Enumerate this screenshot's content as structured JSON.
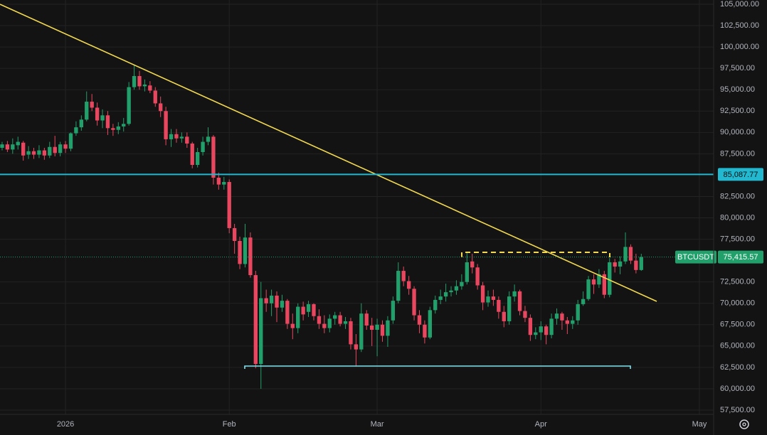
{
  "chart_data": {
    "type": "candlestick",
    "symbol": "BTCUSDT",
    "up_color": "#22a06b",
    "down_color": "#e9475f",
    "grid": true,
    "xlim": [
      -12.4,
      122.7
    ],
    "xticks": [
      {
        "value": 0,
        "label": "2026"
      },
      {
        "value": 31,
        "label": "Feb"
      },
      {
        "value": 59,
        "label": "Mar"
      },
      {
        "value": 90,
        "label": "Apr"
      },
      {
        "value": 120,
        "label": "May"
      }
    ],
    "ylim": [
      57000,
      105500
    ],
    "yticks": [
      {
        "value": 57500,
        "label": "57,500.00"
      },
      {
        "value": 60000,
        "label": "60,000.00"
      },
      {
        "value": 62500,
        "label": "62,500.00"
      },
      {
        "value": 65000,
        "label": "65,000.00"
      },
      {
        "value": 67500,
        "label": "67,500.00"
      },
      {
        "value": 70000,
        "label": "70,000.00"
      },
      {
        "value": 72500,
        "label": "72,500.00"
      },
      {
        "value": 77500,
        "label": "77,500.00"
      },
      {
        "value": 80000,
        "label": "80,000.00"
      },
      {
        "value": 82500,
        "label": "82,500.00"
      },
      {
        "value": 87500,
        "label": "87,500.00"
      },
      {
        "value": 90000,
        "label": "90,000.00"
      },
      {
        "value": 92500,
        "label": "92,500.00"
      },
      {
        "value": 95000,
        "label": "95,000.00"
      },
      {
        "value": 97500,
        "label": "97,500.00"
      },
      {
        "value": 100000,
        "label": "100,000.00"
      },
      {
        "value": 102500,
        "label": "102,500.00"
      },
      {
        "value": 105000,
        "label": "105,000.00"
      }
    ],
    "price_line": {
      "value": 85087.77,
      "label": "85,087.77",
      "color": "#22b8cf"
    },
    "last_price": {
      "value": 75415.57,
      "label": "75,415.57"
    },
    "x": [
      -12,
      -11,
      -10,
      -9,
      -8,
      -7,
      -6,
      -5,
      -4,
      -3,
      -2,
      -1,
      0,
      1,
      2,
      3,
      4,
      5,
      6,
      7,
      8,
      9,
      10,
      11,
      12,
      13,
      14,
      15,
      16,
      17,
      18,
      19,
      20,
      21,
      22,
      23,
      24,
      25,
      26,
      27,
      28,
      29,
      30,
      31,
      32,
      33,
      34,
      35,
      36,
      37,
      38,
      39,
      40,
      41,
      42,
      43,
      44,
      45,
      46,
      47,
      48,
      49,
      50,
      51,
      52,
      53,
      54,
      55,
      56,
      57,
      58,
      59,
      60,
      61,
      62,
      63,
      64,
      65,
      66,
      67,
      68,
      69,
      70,
      71,
      72,
      73,
      74,
      75,
      76,
      77,
      78,
      79,
      80,
      81,
      82,
      83,
      84,
      85,
      86,
      87,
      88,
      89,
      90,
      91,
      92,
      93,
      94,
      95,
      96,
      97,
      98,
      99,
      100,
      101,
      102,
      103,
      104,
      105,
      106,
      107,
      108,
      109
    ],
    "open": [
      88200,
      88600,
      88000,
      88500,
      88800,
      87400,
      87800,
      87400,
      87900,
      87300,
      88300,
      87600,
      88600,
      88100,
      89900,
      90600,
      91500,
      93600,
      92900,
      91400,
      92000,
      90500,
      90300,
      90700,
      91000,
      95300,
      96600,
      95400,
      95500,
      94900,
      93400,
      92500,
      89200,
      89800,
      89300,
      89500,
      88700,
      86200,
      87700,
      88900,
      89500,
      84700,
      83900,
      84200,
      78800,
      77300,
      74600,
      77700,
      73300,
      62900,
      70600,
      70000,
      70900,
      69500,
      70300,
      67600,
      67100,
      69600,
      69000,
      69900,
      68500,
      67600,
      67100,
      68200,
      68600,
      67600,
      67900,
      65200,
      64600,
      68800,
      67400,
      66900,
      67500,
      66200,
      68000,
      70300,
      73800,
      72600,
      71700,
      68600,
      67500,
      66000,
      69200,
      70400,
      70800,
      71300,
      71500,
      72000,
      72500,
      74900,
      74200,
      72100,
      70100,
      70800,
      70400,
      69000,
      67900,
      70800,
      71400,
      69100,
      68300,
      66300,
      66600,
      67300,
      66300,
      68200,
      68800,
      68000,
      67600,
      68000,
      69900,
      70500,
      72800,
      72200,
      73400,
      71000,
      74800,
      74300,
      74900,
      76600,
      75000,
      73900
    ],
    "high": [
      88900,
      89000,
      89300,
      89500,
      89000,
      88400,
      88200,
      88500,
      88200,
      88900,
      89600,
      88900,
      89000,
      90000,
      91300,
      92000,
      94800,
      94500,
      93500,
      92700,
      92500,
      91000,
      91200,
      91700,
      95900,
      97900,
      97200,
      96200,
      96000,
      95300,
      94200,
      93000,
      90400,
      90400,
      90000,
      90000,
      88900,
      88200,
      89500,
      90600,
      89700,
      85300,
      84800,
      84500,
      79300,
      77800,
      79300,
      78300,
      73800,
      72500,
      71600,
      71600,
      71400,
      71000,
      70500,
      68800,
      70000,
      70200,
      70300,
      70000,
      69300,
      68600,
      68700,
      69000,
      69000,
      68400,
      68300,
      66400,
      70000,
      69200,
      68300,
      68200,
      68000,
      68500,
      70800,
      74800,
      74300,
      73200,
      72000,
      69200,
      68000,
      69600,
      70900,
      71600,
      72300,
      72000,
      72700,
      73400,
      76000,
      75800,
      74600,
      72500,
      71500,
      71600,
      70800,
      69700,
      71400,
      72200,
      71600,
      69700,
      68700,
      67200,
      67900,
      67500,
      68800,
      69400,
      69000,
      68400,
      68500,
      70400,
      71400,
      73200,
      73400,
      74000,
      73800,
      75300,
      75200,
      75500,
      78300,
      76900,
      75800,
      75800
    ],
    "low": [
      87900,
      87700,
      87500,
      88000,
      86700,
      86900,
      86900,
      87000,
      86800,
      87000,
      87200,
      87200,
      87600,
      87800,
      89600,
      90200,
      91300,
      92500,
      90800,
      90500,
      89700,
      89600,
      89800,
      90100,
      90800,
      95000,
      95000,
      94800,
      94600,
      93000,
      91800,
      88500,
      88300,
      88800,
      88800,
      88200,
      85800,
      85900,
      87300,
      88500,
      83900,
      83300,
      83300,
      78200,
      75800,
      74000,
      74200,
      73000,
      62400,
      60000,
      69000,
      68500,
      67800,
      69000,
      67000,
      65800,
      66500,
      68000,
      68400,
      68000,
      67000,
      66500,
      66600,
      67500,
      67300,
      67000,
      64600,
      62600,
      64300,
      66900,
      65000,
      63800,
      65500,
      64900,
      67600,
      70000,
      72000,
      71000,
      68000,
      66500,
      65300,
      65800,
      68800,
      69900,
      70200,
      70800,
      71000,
      71600,
      72200,
      73500,
      71600,
      69200,
      69600,
      69700,
      68200,
      67200,
      67500,
      70200,
      68600,
      67800,
      65600,
      65800,
      65700,
      65200,
      65900,
      67500,
      66900,
      66400,
      67000,
      67500,
      69700,
      70300,
      71100,
      71800,
      70600,
      70700,
      73600,
      73400,
      74600,
      74600,
      73500,
      73800
    ],
    "close": [
      88600,
      88000,
      88600,
      88900,
      87300,
      87800,
      87400,
      87900,
      87300,
      88300,
      87600,
      88600,
      88100,
      89900,
      90600,
      91500,
      93600,
      92900,
      91400,
      92000,
      90500,
      90300,
      90700,
      91000,
      95300,
      96600,
      95400,
      95600,
      94900,
      93400,
      92500,
      89200,
      89800,
      89300,
      89500,
      88700,
      86200,
      87700,
      88900,
      89500,
      84700,
      83900,
      84200,
      78800,
      77300,
      74600,
      77700,
      73300,
      62900,
      70600,
      70000,
      70900,
      69500,
      70300,
      67600,
      67100,
      69600,
      68700,
      69900,
      68500,
      67600,
      67100,
      68200,
      68600,
      67600,
      67900,
      65200,
      64600,
      68800,
      67400,
      66900,
      67500,
      66200,
      68000,
      70300,
      73800,
      72600,
      71700,
      68600,
      67500,
      66000,
      69200,
      70400,
      70800,
      71300,
      71500,
      72000,
      72500,
      74800,
      74200,
      72100,
      70100,
      70800,
      70400,
      69000,
      67900,
      70800,
      71400,
      69100,
      68300,
      66300,
      66600,
      67300,
      66300,
      68200,
      68800,
      68000,
      67600,
      68000,
      69900,
      70500,
      72800,
      72200,
      73400,
      71000,
      74800,
      74300,
      74900,
      76600,
      75000,
      73900,
      75415.57
    ]
  }
}
